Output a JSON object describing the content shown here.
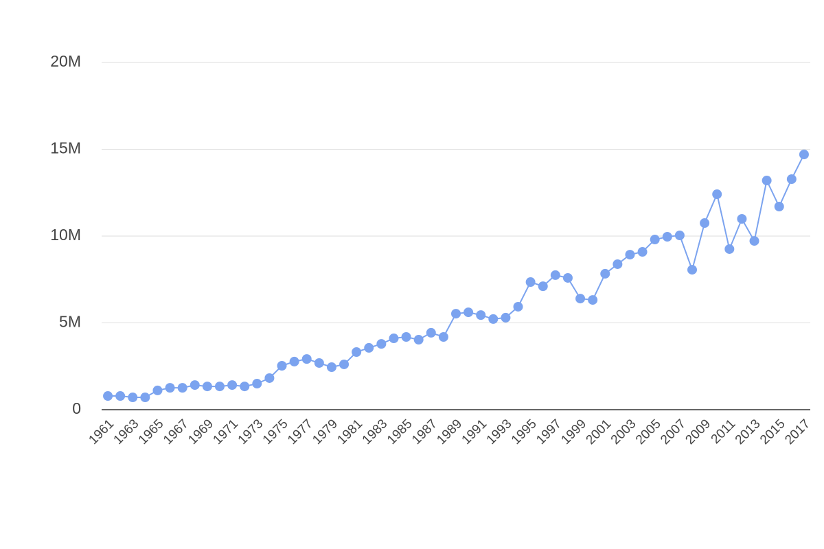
{
  "chart_data": {
    "type": "line",
    "categories": [
      "1961",
      null,
      "1963",
      null,
      "1965",
      null,
      "1967",
      null,
      "1969",
      null,
      "1971",
      null,
      "1973",
      null,
      "1975",
      null,
      "1977",
      null,
      "1979",
      null,
      "1981",
      null,
      "1983",
      null,
      "1985",
      null,
      "1987",
      null,
      "1989",
      null,
      "1991",
      null,
      "1993",
      null,
      "1995",
      null,
      "1997",
      null,
      "1999",
      null,
      "2001",
      null,
      "2003",
      null,
      "2005",
      null,
      "2007",
      null,
      "2009",
      null,
      "2011",
      null,
      "2013",
      null,
      "2015",
      null,
      "2017"
    ],
    "values": [
      790000,
      790000,
      710000,
      710000,
      1110000,
      1260000,
      1260000,
      1420000,
      1340000,
      1340000,
      1420000,
      1340000,
      1500000,
      1820000,
      2530000,
      2770000,
      2920000,
      2690000,
      2450000,
      2610000,
      3320000,
      3560000,
      3790000,
      4110000,
      4190000,
      4030000,
      4430000,
      4190000,
      5530000,
      5610000,
      5450000,
      5220000,
      5300000,
      5930000,
      7350000,
      7110000,
      7750000,
      7590000,
      6400000,
      6320000,
      7830000,
      8380000,
      8930000,
      9090000,
      9800000,
      9960000,
      10040000,
      8060000,
      10750000,
      12410000,
      9250000,
      10990000,
      9720000,
      13200000,
      11700000,
      13280000,
      14700000
    ],
    "color": "#7ba3ef",
    "ylim": [
      0,
      20000000
    ],
    "yticks": [
      0,
      {
        "value": 5000000,
        "label": "5M"
      },
      {
        "value": 10000000,
        "label": "10M"
      },
      {
        "value": 15000000,
        "label": "15M"
      },
      {
        "value": 20000000,
        "label": "20M"
      }
    ],
    "grid": true
  }
}
